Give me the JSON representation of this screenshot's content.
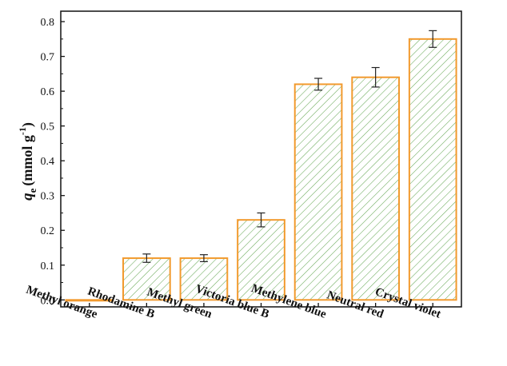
{
  "chart_data": {
    "type": "bar",
    "categories": [
      "Methyl orange",
      "Rhodamine B",
      "Methyl green",
      "Victoria blue B",
      "Methylene blue",
      "Neutral red",
      "Crystal violet"
    ],
    "values": [
      0.0,
      0.12,
      0.12,
      0.23,
      0.62,
      0.64,
      0.75
    ],
    "errors": [
      0.0,
      0.012,
      0.01,
      0.02,
      0.017,
      0.028,
      0.024
    ],
    "ylabel": {
      "symbol": "q",
      "subscript": "e",
      "unit_text": "(mmol g",
      "superscript": "-1",
      "close": ")"
    },
    "xlabel": "",
    "ylim": [
      -0.02,
      0.83
    ],
    "yticks": [
      "0.0",
      "0.1",
      "0.2",
      "0.3",
      "0.4",
      "0.5",
      "0.6",
      "0.7",
      "0.8"
    ],
    "grid": false,
    "colors": {
      "bar_edge": "#f29a2e",
      "hatch": "#6aaa5a",
      "axis": "#111111",
      "error_bar": "#222222"
    }
  }
}
